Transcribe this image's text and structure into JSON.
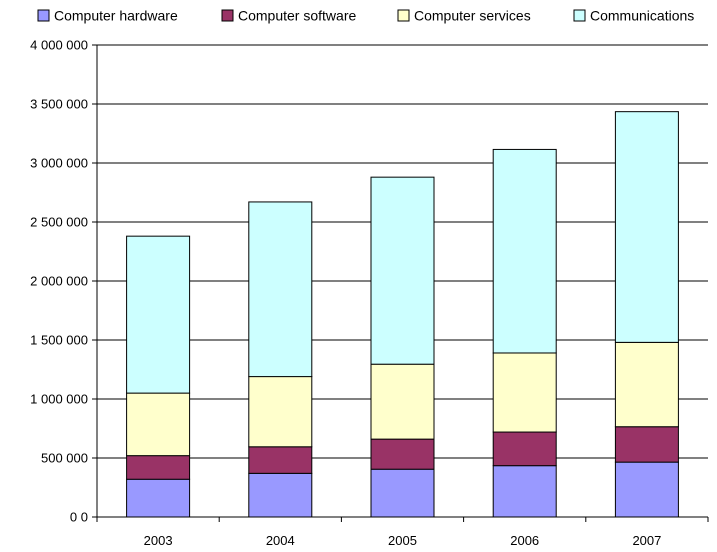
{
  "chart_data": {
    "type": "bar",
    "stacked": true,
    "categories": [
      "2003",
      "2004",
      "2005",
      "2006",
      "2007"
    ],
    "series": [
      {
        "name": "Computer hardware",
        "color": "#9999ff",
        "values": [
          320000,
          370000,
          405000,
          435000,
          465000
        ]
      },
      {
        "name": "Computer software",
        "color": "#993366",
        "values": [
          200000,
          225000,
          255000,
          285000,
          300000
        ]
      },
      {
        "name": "Computer services",
        "color": "#ffffcc",
        "values": [
          530000,
          595000,
          635000,
          670000,
          715000
        ]
      },
      {
        "name": "Communications",
        "color": "#ccffff",
        "values": [
          1330000,
          1480000,
          1585000,
          1725000,
          1955000
        ]
      }
    ],
    "ylim": [
      0,
      4000000
    ],
    "yticks": [
      0,
      500000,
      1000000,
      1500000,
      2000000,
      2500000,
      3000000,
      3500000,
      4000000
    ],
    "ytick_labels": [
      "0 0",
      "500 000",
      "1 000 000",
      "1 500 000",
      "2 000 000",
      "2 500 000",
      "3 000 000",
      "3 500 000",
      "4 000 000"
    ],
    "grid": true,
    "legend_position": "top"
  }
}
